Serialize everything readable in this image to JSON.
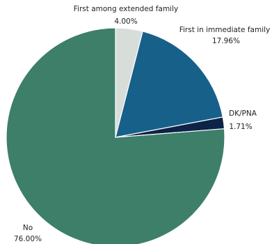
{
  "chart_data": {
    "type": "pie",
    "start_angle_deg": 0,
    "direction": "clockwise",
    "slices": [
      {
        "label": "First among extended family",
        "value": 4.0,
        "value_label": "4.00%",
        "color": "#d7ddd8"
      },
      {
        "label": "First in immediate family",
        "value": 17.96,
        "value_label": "17.96%",
        "color": "#17608a"
      },
      {
        "label": "DK/PNA",
        "value": 1.71,
        "value_label": "1.71%",
        "color": "#0d2347"
      },
      {
        "label": "No",
        "value": 76.0,
        "value_label": "76.00%",
        "color": "#3d7f69"
      }
    ]
  }
}
